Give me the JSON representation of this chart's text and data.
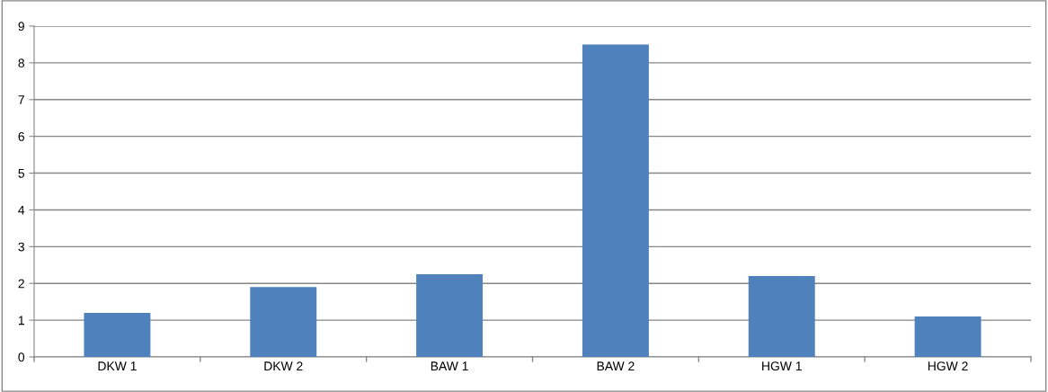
{
  "chart_data": {
    "type": "bar",
    "categories": [
      "DKW 1",
      "DKW 2",
      "BAW 1",
      "BAW 2",
      "HGW 1",
      "HGW 2"
    ],
    "values": [
      1.2,
      1.9,
      2.25,
      8.5,
      2.2,
      1.1
    ],
    "color": "#4f81bd",
    "ylim": [
      0,
      9
    ],
    "yticks": [
      0,
      1,
      2,
      3,
      4,
      5,
      6,
      7,
      8,
      9
    ],
    "grid": "y"
  }
}
